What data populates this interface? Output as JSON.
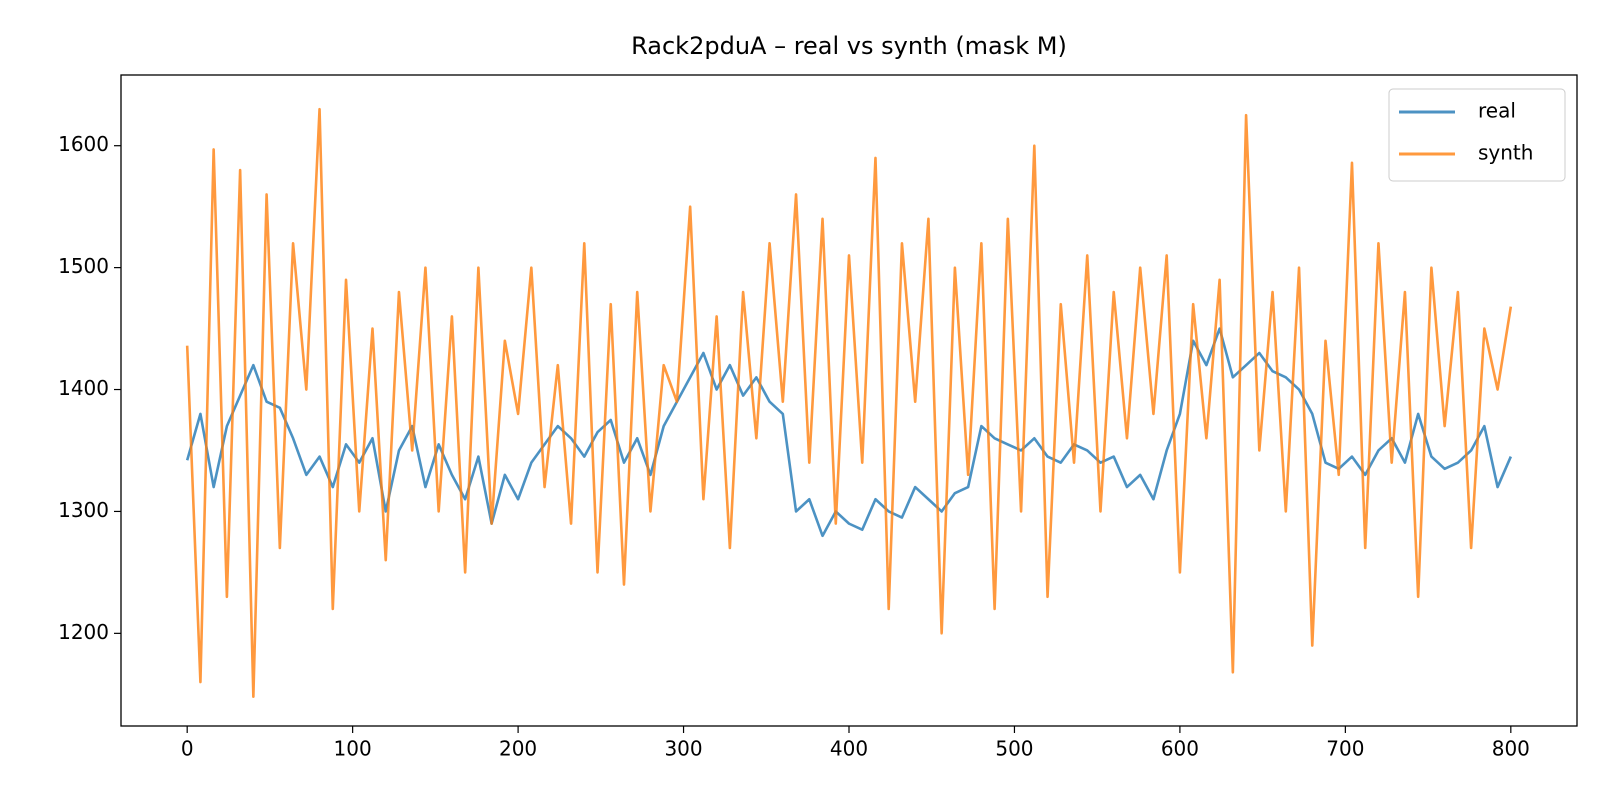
{
  "chart_data": {
    "type": "line",
    "title": "Rack2pduA – real vs synth (mask M)",
    "x": [
      0,
      8,
      16,
      24,
      32,
      40,
      48,
      56,
      64,
      72,
      80,
      88,
      96,
      104,
      112,
      120,
      128,
      136,
      144,
      152,
      160,
      168,
      176,
      184,
      192,
      200,
      208,
      216,
      224,
      232,
      240,
      248,
      256,
      264,
      272,
      280,
      288,
      296,
      304,
      312,
      320,
      328,
      336,
      344,
      352,
      360,
      368,
      376,
      384,
      392,
      400,
      408,
      416,
      424,
      432,
      440,
      448,
      456,
      464,
      472,
      480,
      488,
      496,
      504,
      512,
      520,
      528,
      536,
      544,
      552,
      560,
      568,
      576,
      584,
      592,
      600,
      608,
      616,
      624,
      632,
      640,
      648,
      656,
      664,
      672,
      680,
      688,
      696,
      704,
      712,
      720,
      728,
      736,
      744,
      752,
      760,
      768,
      776,
      784,
      792,
      800
    ],
    "series": [
      {
        "name": "real",
        "color": "#1f77b4",
        "values": [
          1342,
          1380,
          1320,
          1370,
          1395,
          1420,
          1390,
          1385,
          1360,
          1330,
          1345,
          1320,
          1355,
          1340,
          1360,
          1300,
          1350,
          1370,
          1320,
          1355,
          1330,
          1310,
          1345,
          1290,
          1330,
          1310,
          1340,
          1355,
          1370,
          1360,
          1345,
          1365,
          1375,
          1340,
          1360,
          1330,
          1370,
          1390,
          1410,
          1430,
          1400,
          1420,
          1395,
          1410,
          1390,
          1380,
          1300,
          1310,
          1280,
          1300,
          1290,
          1285,
          1310,
          1300,
          1295,
          1320,
          1310,
          1300,
          1315,
          1320,
          1370,
          1360,
          1355,
          1350,
          1360,
          1345,
          1340,
          1355,
          1350,
          1340,
          1345,
          1320,
          1330,
          1310,
          1350,
          1380,
          1440,
          1420,
          1450,
          1410,
          1420,
          1430,
          1415,
          1410,
          1400,
          1380,
          1340,
          1335,
          1345,
          1330,
          1350,
          1360,
          1340,
          1380,
          1345,
          1335,
          1340,
          1350,
          1370,
          1320,
          1345
        ]
      },
      {
        "name": "synth",
        "color": "#ff7f0e",
        "values": [
          1436,
          1160,
          1597,
          1230,
          1580,
          1148,
          1560,
          1270,
          1520,
          1400,
          1630,
          1220,
          1490,
          1300,
          1450,
          1260,
          1480,
          1350,
          1500,
          1300,
          1460,
          1250,
          1500,
          1290,
          1440,
          1380,
          1500,
          1320,
          1420,
          1290,
          1520,
          1250,
          1470,
          1240,
          1480,
          1300,
          1420,
          1390,
          1550,
          1310,
          1460,
          1270,
          1480,
          1360,
          1520,
          1390,
          1560,
          1340,
          1540,
          1290,
          1510,
          1340,
          1590,
          1220,
          1520,
          1390,
          1540,
          1200,
          1500,
          1330,
          1520,
          1220,
          1540,
          1300,
          1600,
          1230,
          1470,
          1340,
          1510,
          1300,
          1480,
          1360,
          1500,
          1380,
          1510,
          1250,
          1470,
          1360,
          1490,
          1168,
          1625,
          1350,
          1480,
          1300,
          1500,
          1190,
          1440,
          1330,
          1586,
          1270,
          1520,
          1340,
          1480,
          1230,
          1500,
          1370,
          1480,
          1270,
          1450,
          1400,
          1468
        ]
      }
    ],
    "xlim": [
      -40,
      840
    ],
    "ylim": [
      1124,
      1658
    ],
    "xticks": [
      0,
      100,
      200,
      300,
      400,
      500,
      600,
      700,
      800
    ],
    "yticks": [
      1200,
      1300,
      1400,
      1500,
      1600
    ],
    "legend": "upper right"
  }
}
